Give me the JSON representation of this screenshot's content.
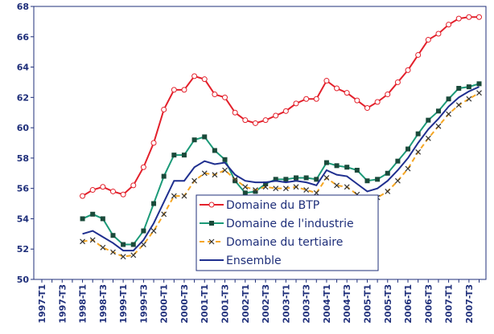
{
  "chart_data": {
    "type": "line",
    "categories": [
      "1997-T1",
      null,
      "1997-T3",
      null,
      "1998-T1",
      null,
      "1998-T3",
      null,
      "1999-T1",
      null,
      "1999-T3",
      null,
      "2000-T1",
      null,
      "2000-T3",
      null,
      "2001-T1",
      null,
      "2001-T3",
      null,
      "2002-T1",
      null,
      "2002-T3",
      null,
      "2003-T1",
      null,
      "2003-T3",
      null,
      "2004-T1",
      null,
      "2004-T3",
      null,
      "2005-T1",
      null,
      "2005-T3",
      null,
      "2006-T1",
      null,
      "2006-T3",
      null,
      "2007-T1",
      null,
      "2007-T3",
      null
    ],
    "series": [
      {
        "name": "Domaine du BTP",
        "color": "#e3202b",
        "marker": "circle",
        "dash": false,
        "values": [
          null,
          null,
          null,
          null,
          55.5,
          55.9,
          56.1,
          55.8,
          55.6,
          56.2,
          57.4,
          59.0,
          61.2,
          62.5,
          62.5,
          63.4,
          63.2,
          62.2,
          62.0,
          61.0,
          60.5,
          60.3,
          60.5,
          60.8,
          61.1,
          61.6,
          61.9,
          61.9,
          63.1,
          62.6,
          62.3,
          61.8,
          61.3,
          61.7,
          62.2,
          63.0,
          63.8,
          64.8,
          65.8,
          66.2,
          66.8,
          67.2,
          67.3,
          67.3
        ]
      },
      {
        "name": "Domaine de l'industrie",
        "color": "#1b9a78",
        "marker": "square",
        "dash": false,
        "values": [
          null,
          null,
          null,
          null,
          54.0,
          54.3,
          54.0,
          52.9,
          52.3,
          52.3,
          53.2,
          55.0,
          56.8,
          58.2,
          58.2,
          59.2,
          59.4,
          58.5,
          57.9,
          56.5,
          55.7,
          55.8,
          56.3,
          56.6,
          56.6,
          56.7,
          56.7,
          56.6,
          57.7,
          57.5,
          57.4,
          57.2,
          56.5,
          56.6,
          57.0,
          57.8,
          58.6,
          59.6,
          60.5,
          61.1,
          61.9,
          62.6,
          62.7,
          62.9
        ]
      },
      {
        "name": "Domaine du tertiaire",
        "color": "#f5a623",
        "marker": "cross",
        "dash": true,
        "values": [
          null,
          null,
          null,
          null,
          52.5,
          52.6,
          52.1,
          51.8,
          51.5,
          51.6,
          52.3,
          53.2,
          54.3,
          55.5,
          55.5,
          56.5,
          57.0,
          56.9,
          57.2,
          56.6,
          56.1,
          55.9,
          56.1,
          56.0,
          56.0,
          56.1,
          55.9,
          55.7,
          56.7,
          56.2,
          56.1,
          55.6,
          55.1,
          55.4,
          55.8,
          56.5,
          57.3,
          58.4,
          59.3,
          60.1,
          60.9,
          61.5,
          61.9,
          62.3
        ]
      },
      {
        "name": "Ensemble",
        "color": "#1f2f8f",
        "marker": "none",
        "dash": false,
        "values": [
          null,
          null,
          null,
          null,
          53.0,
          53.2,
          52.8,
          52.4,
          51.9,
          51.9,
          52.6,
          53.7,
          55.1,
          56.5,
          56.5,
          57.4,
          57.8,
          57.6,
          57.7,
          56.9,
          56.5,
          56.4,
          56.4,
          56.5,
          56.4,
          56.5,
          56.4,
          56.2,
          57.2,
          56.9,
          56.8,
          56.3,
          55.8,
          56.0,
          56.5,
          57.2,
          58.0,
          59.0,
          59.9,
          60.6,
          61.4,
          62.0,
          62.4,
          62.7
        ]
      }
    ],
    "ylim": [
      50,
      68
    ],
    "yticks": [
      50,
      52,
      54,
      56,
      58,
      60,
      62,
      64,
      66,
      68
    ],
    "grid": false
  }
}
